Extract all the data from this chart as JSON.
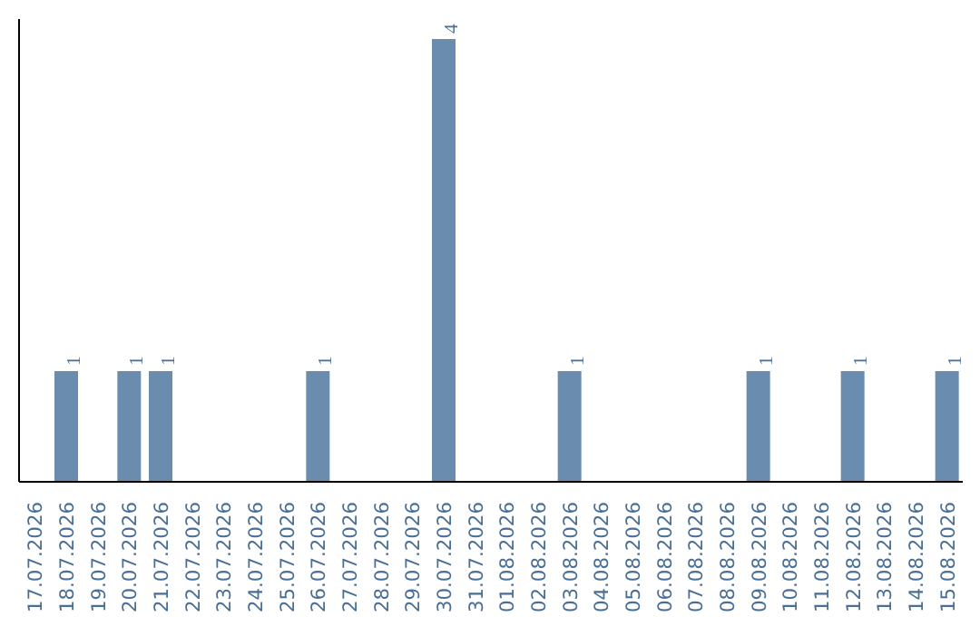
{
  "chart_data": {
    "type": "bar",
    "categories": [
      "17.07.2026",
      "18.07.2026",
      "19.07.2026",
      "20.07.2026",
      "21.07.2026",
      "22.07.2026",
      "23.07.2026",
      "24.07.2026",
      "25.07.2026",
      "26.07.2026",
      "27.07.2026",
      "28.07.2026",
      "29.07.2026",
      "30.07.2026",
      "31.07.2026",
      "01.08.2026",
      "02.08.2026",
      "03.08.2026",
      "04.08.2026",
      "05.08.2026",
      "06.08.2026",
      "07.08.2026",
      "08.08.2026",
      "09.08.2026",
      "10.08.2026",
      "11.08.2026",
      "12.08.2026",
      "13.08.2026",
      "14.08.2026",
      "15.08.2026"
    ],
    "values": [
      0,
      1,
      0,
      1,
      1,
      0,
      0,
      0,
      0,
      1,
      0,
      0,
      0,
      4,
      0,
      0,
      0,
      1,
      0,
      0,
      0,
      0,
      0,
      1,
      0,
      0,
      1,
      0,
      0,
      1
    ],
    "value_labels": [
      null,
      "1",
      null,
      "1",
      "1",
      null,
      null,
      null,
      null,
      "1",
      null,
      null,
      null,
      "4",
      null,
      null,
      null,
      "1",
      null,
      null,
      null,
      null,
      null,
      "1",
      null,
      null,
      "1",
      null,
      null,
      "1"
    ],
    "color": "#6a8caf",
    "grid": false
  }
}
